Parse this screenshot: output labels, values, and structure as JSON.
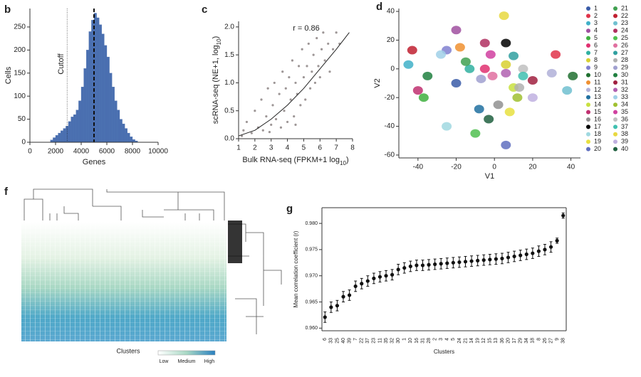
{
  "chart_data": [
    {
      "type": "histogram",
      "panel": "b",
      "xlabel": "Genes",
      "ylabel": "Cells",
      "color": "#4a6fb0",
      "bins": [
        1600,
        1800,
        2000,
        2200,
        2400,
        2600,
        2800,
        3000,
        3200,
        3400,
        3600,
        3800,
        4000,
        4200,
        4400,
        4600,
        4800,
        5000,
        5200,
        5400,
        5600,
        5800,
        6000,
        6200,
        6400,
        6600,
        6800,
        7000,
        7200,
        7400,
        7600,
        7800,
        8000,
        8200,
        8400
      ],
      "values": [
        5,
        10,
        15,
        20,
        25,
        30,
        35,
        45,
        55,
        60,
        70,
        90,
        120,
        160,
        200,
        240,
        265,
        280,
        270,
        255,
        235,
        210,
        185,
        150,
        120,
        90,
        70,
        50,
        40,
        30,
        20,
        12,
        6,
        3
      ],
      "vlines": [
        {
          "value": 2900,
          "label": "Cutoff"
        },
        {
          "value": 5000
        }
      ],
      "xlim": [
        0,
        10000
      ],
      "xticks": [
        0,
        2000,
        4000,
        6000,
        8000,
        10000
      ],
      "ylim": [
        0,
        290
      ],
      "yticks": [
        0,
        50,
        100,
        150,
        200,
        250
      ]
    },
    {
      "type": "scatter",
      "panel": "c",
      "color": "#8c8484",
      "xlabel": [
        "Bulk RNA-seq (FPKM+1 log",
        "10",
        ")"
      ],
      "ylabel": [
        "scRNA-seq (NE+1, log",
        "10",
        ")"
      ],
      "annotation": "r = 0.86",
      "x": [
        1.2,
        1.5,
        1.8,
        2.0,
        2.2,
        2.4,
        2.5,
        2.7,
        2.8,
        3.0,
        3.1,
        3.2,
        3.3,
        3.5,
        3.6,
        3.7,
        3.8,
        3.9,
        4.0,
        4.1,
        4.2,
        4.3,
        4.4,
        4.5,
        4.6,
        4.7,
        4.8,
        4.9,
        5.0,
        5.1,
        5.2,
        5.3,
        5.4,
        5.5,
        5.6,
        5.7,
        5.8,
        5.9,
        6.0,
        6.1,
        6.2,
        6.3,
        6.5,
        6.6,
        6.8,
        7.0,
        7.2,
        1.3,
        2.9,
        4.5
      ],
      "y": [
        0.05,
        0.3,
        0.1,
        0.5,
        0.2,
        0.7,
        0.15,
        0.4,
        0.9,
        0.25,
        0.6,
        1.0,
        0.35,
        0.8,
        0.2,
        1.2,
        0.5,
        0.9,
        0.3,
        1.1,
        0.7,
        1.4,
        0.4,
        1.0,
        0.8,
        1.3,
        0.6,
        1.6,
        1.1,
        0.7,
        1.3,
        1.7,
        0.9,
        1.2,
        1.5,
        1.0,
        1.8,
        1.3,
        1.1,
        1.6,
        1.9,
        1.4,
        1.7,
        1.2,
        1.6,
        1.9,
        1.7,
        0.15,
        0.12,
        0.25
      ],
      "fit": {
        "x": [
          1,
          2,
          3,
          4,
          5,
          6,
          7,
          7.8
        ],
        "y": [
          0.05,
          0.15,
          0.35,
          0.6,
          0.9,
          1.25,
          1.6,
          1.9
        ]
      },
      "xlim": [
        1,
        8
      ],
      "xticks": [
        1,
        2,
        3,
        4,
        5,
        6,
        7,
        8
      ],
      "ylim": [
        0,
        2.1
      ],
      "yticks": [
        {
          "value": 0,
          "label": "0.0"
        },
        {
          "value": 0.5,
          "label": "0.5"
        },
        {
          "value": 1,
          "label": "1.0"
        },
        {
          "value": 1.5,
          "label": "1.5"
        },
        {
          "value": 2,
          "label": "2.0"
        }
      ]
    },
    {
      "type": "cluster",
      "panel": "d",
      "xlabel": "V1",
      "ylabel": "V2",
      "xlim": [
        -50,
        45
      ],
      "xticks": [
        -40,
        -20,
        0,
        20,
        40
      ],
      "ylim": [
        -62,
        42
      ],
      "yticks": [
        -60,
        -40,
        -20,
        0,
        20,
        40
      ],
      "series": [
        {
          "name": "1",
          "color": "#3a5ca8",
          "x": -20,
          "y": -10
        },
        {
          "name": "2",
          "color": "#e0344a",
          "x": 32,
          "y": 10
        },
        {
          "name": "3",
          "color": "#40b0c8",
          "x": -45,
          "y": 3
        },
        {
          "name": "4",
          "color": "#a050a0",
          "x": -20,
          "y": 27
        },
        {
          "name": "5",
          "color": "#40b040",
          "x": -37,
          "y": -20
        },
        {
          "name": "6",
          "color": "#e03070",
          "x": -5,
          "y": 0
        },
        {
          "name": "7",
          "color": "#30b0a0",
          "x": -13,
          "y": 0
        },
        {
          "name": "8",
          "color": "#d8d030",
          "x": 6,
          "y": 3
        },
        {
          "name": "9",
          "color": "#8080d0",
          "x": -25,
          "y": 13
        },
        {
          "name": "10",
          "color": "#207030",
          "x": 41,
          "y": -5
        },
        {
          "name": "11",
          "color": "#f09030",
          "x": -18,
          "y": 15
        },
        {
          "name": "12",
          "color": "#b0b0d8",
          "x": 30,
          "y": -3
        },
        {
          "name": "13",
          "color": "#2070a0",
          "x": -8,
          "y": -28
        },
        {
          "name": "14",
          "color": "#c8e040",
          "x": 10,
          "y": -13
        },
        {
          "name": "15",
          "color": "#c03070",
          "x": -40,
          "y": -15
        },
        {
          "name": "16",
          "color": "#909090",
          "x": 2,
          "y": -25
        },
        {
          "name": "17",
          "color": "#000000",
          "x": 6,
          "y": 18
        },
        {
          "name": "18",
          "color": "#a0d8e0",
          "x": -25,
          "y": -40
        },
        {
          "name": "19",
          "color": "#e8e040",
          "x": 8,
          "y": -30
        },
        {
          "name": "20",
          "color": "#6070c0",
          "x": 6,
          "y": -53
        },
        {
          "name": "21",
          "color": "#40a050",
          "x": -15,
          "y": 5
        },
        {
          "name": "22",
          "color": "#c02030",
          "x": -43,
          "y": 13
        },
        {
          "name": "23",
          "color": "#70c0d0",
          "x": 38,
          "y": -15
        },
        {
          "name": "24",
          "color": "#b03060",
          "x": -5,
          "y": 18
        },
        {
          "name": "25",
          "color": "#50c050",
          "x": -10,
          "y": -45
        },
        {
          "name": "26",
          "color": "#e070a0",
          "x": -1,
          "y": -5
        },
        {
          "name": "27",
          "color": "#30a0a0",
          "x": 10,
          "y": 9
        },
        {
          "name": "28",
          "color": "#b0b0b0",
          "x": 13,
          "y": -13
        },
        {
          "name": "29",
          "color": "#a0a0d0",
          "x": -7,
          "y": -7
        },
        {
          "name": "30",
          "color": "#208040",
          "x": -35,
          "y": -5
        },
        {
          "name": "31",
          "color": "#a02040",
          "x": 20,
          "y": -8
        },
        {
          "name": "32",
          "color": "#b060b0",
          "x": 6,
          "y": -3
        },
        {
          "name": "33",
          "color": "#a0d0e8",
          "x": -28,
          "y": 10
        },
        {
          "name": "34",
          "color": "#a0c030",
          "x": 12,
          "y": -20
        },
        {
          "name": "35",
          "color": "#d040a0",
          "x": -2,
          "y": 10
        },
        {
          "name": "36",
          "color": "#c0c0c0",
          "x": 15,
          "y": 0
        },
        {
          "name": "37",
          "color": "#40c0b0",
          "x": 15,
          "y": -5
        },
        {
          "name": "38",
          "color": "#e8d840",
          "x": 5,
          "y": 37
        },
        {
          "name": "39",
          "color": "#c0b0e0",
          "x": 20,
          "y": -20
        },
        {
          "name": "40",
          "color": "#206040",
          "x": -3,
          "y": -35
        }
      ]
    },
    {
      "type": "heatmap",
      "panel": "f",
      "xlabel": "Clusters",
      "legend": [
        "Low",
        "Medium",
        "High"
      ]
    },
    {
      "type": "errorbar",
      "panel": "g",
      "xlabel": "Clusters",
      "ylabel": "Mean correlation coefficient (r)",
      "color": "#111111",
      "categories": [
        "6",
        "33",
        "25",
        "40",
        "39",
        "7",
        "22",
        "37",
        "23",
        "11",
        "35",
        "32",
        "30",
        "1",
        "10",
        "16",
        "31",
        "28",
        "2",
        "3",
        "4",
        "5",
        "24",
        "21",
        "14",
        "19",
        "12",
        "15",
        "13",
        "36",
        "20",
        "17",
        "29",
        "34",
        "18",
        "8",
        "26",
        "27",
        "9",
        "38"
      ],
      "values": [
        0.9621,
        0.964,
        0.9643,
        0.966,
        0.9663,
        0.968,
        0.9685,
        0.969,
        0.9695,
        0.9698,
        0.97,
        0.9702,
        0.9712,
        0.9715,
        0.9718,
        0.972,
        0.972,
        0.9721,
        0.9722,
        0.9723,
        0.9724,
        0.9725,
        0.9726,
        0.9727,
        0.9728,
        0.9729,
        0.973,
        0.9731,
        0.9732,
        0.9733,
        0.9735,
        0.9737,
        0.9739,
        0.9741,
        0.9743,
        0.9747,
        0.975,
        0.9755,
        0.9767,
        0.9815
      ],
      "errors": [
        0.001,
        0.001,
        0.001,
        0.001,
        0.001,
        0.001,
        0.001,
        0.001,
        0.001,
        0.001,
        0.001,
        0.001,
        0.001,
        0.001,
        0.001,
        0.001,
        0.001,
        0.001,
        0.001,
        0.001,
        0.001,
        0.001,
        0.001,
        0.001,
        0.001,
        0.001,
        0.001,
        0.001,
        0.001,
        0.001,
        0.001,
        0.001,
        0.001,
        0.001,
        0.001,
        0.001,
        0.001,
        0.001,
        0.0005,
        0.0005
      ],
      "ylim": [
        0.9595,
        0.983
      ],
      "yticks": [
        {
          "value": 0.96,
          "label": "0.960"
        },
        {
          "value": 0.965,
          "label": "0.965"
        },
        {
          "value": 0.97,
          "label": "0.970"
        },
        {
          "value": 0.975,
          "label": "0.975"
        },
        {
          "value": 0.98,
          "label": "0.980"
        }
      ]
    }
  ]
}
